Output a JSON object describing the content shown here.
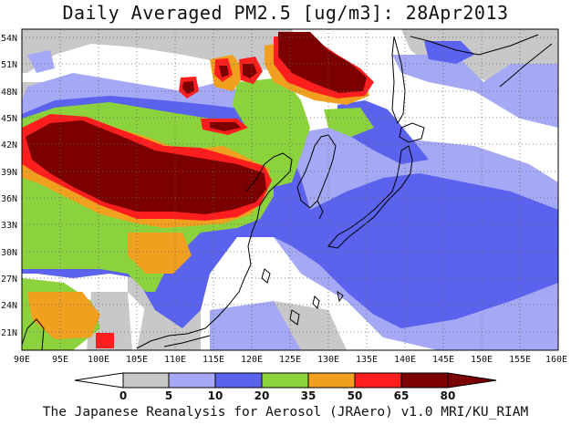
{
  "title": "Daily Averaged PM2.5 [ug/m3]: 28Apr2013",
  "credit": "The Japanese Reanalysis for Aerosol (JRAero) v1.0 MRI/KU_RIAM",
  "map": {
    "lon_range": [
      90,
      160
    ],
    "lat_range": [
      19.5,
      55.5
    ],
    "lon_ticks": [
      "90E",
      "95E",
      "100E",
      "105E",
      "110E",
      "115E",
      "120E",
      "125E",
      "130E",
      "135E",
      "140E",
      "145E",
      "150E",
      "155E",
      "160E"
    ],
    "lat_ticks": [
      "54N",
      "51N",
      "48N",
      "45N",
      "42N",
      "39N",
      "36N",
      "33N",
      "30N",
      "27N",
      "24N",
      "21N"
    ],
    "grid": "dotted"
  },
  "colorbar": {
    "labels": [
      "0",
      "5",
      "10",
      "20",
      "35",
      "50",
      "65",
      "80"
    ],
    "colors": [
      "#ffffff",
      "#c8c8c8",
      "#a5a8f5",
      "#5a62ee",
      "#8cd23c",
      "#f0a01e",
      "#ff1e1e",
      "#7d0000"
    ]
  },
  "colors": {
    "white": "#ffffff",
    "gray": "#c8c8c8",
    "lavender": "#a5a8f5",
    "blue": "#5a62ee",
    "green": "#8cd23c",
    "orange": "#f0a01e",
    "red": "#ff1e1e",
    "darkred": "#7d0000"
  }
}
